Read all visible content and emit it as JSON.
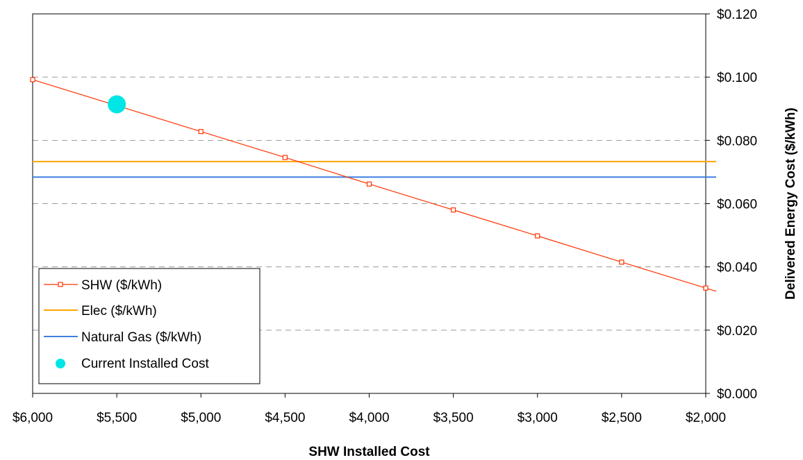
{
  "chart_data": {
    "type": "line",
    "title": "",
    "xlabel": "SHW Installed Cost",
    "ylabel": "Delivered Energy Cost ($/kWh)",
    "x_reversed": true,
    "xlim": [
      6000,
      2000
    ],
    "ylim": [
      0,
      0.12
    ],
    "y_axis_side": "right",
    "x_ticks": [
      6000,
      5500,
      5000,
      4500,
      4000,
      3500,
      3000,
      2500,
      2000
    ],
    "x_tick_labels": [
      "$6,000",
      "$5,500",
      "$5,000",
      "$4,500",
      "$4,000",
      "$3,500",
      "$3,000",
      "$2,500",
      "$2,000"
    ],
    "y_ticks": [
      0,
      0.02,
      0.04,
      0.06,
      0.08,
      0.1,
      0.12
    ],
    "y_tick_labels": [
      "$0.000",
      "$0.020",
      "$0.040",
      "$0.060",
      "$0.080",
      "$0.100",
      "$0.120"
    ],
    "grid": "horizontal dashed",
    "legend_position": "bottom-left",
    "series": [
      {
        "name": "SHW ($/kWh)",
        "kind": "line-with-square-markers",
        "color": "#ff3300",
        "x": [
          6000,
          5000,
          4500,
          4000,
          3500,
          3000,
          2500,
          2000
        ],
        "y": [
          0.0992,
          0.0828,
          0.0746,
          0.0662,
          0.058,
          0.0498,
          0.0415,
          0.0333
        ],
        "extends_to_x": 1700
      },
      {
        "name": "Elec ($/kWh)",
        "kind": "horizontal-line",
        "color": "#ffa500",
        "value": 0.0733
      },
      {
        "name": "Natural Gas ($/kWh)",
        "kind": "horizontal-line",
        "color": "#3f7fe0",
        "value": 0.0684
      },
      {
        "name": "Current Installed Cost",
        "kind": "point",
        "color": "#00e5e5",
        "x": 5500,
        "y": 0.0914
      }
    ]
  }
}
